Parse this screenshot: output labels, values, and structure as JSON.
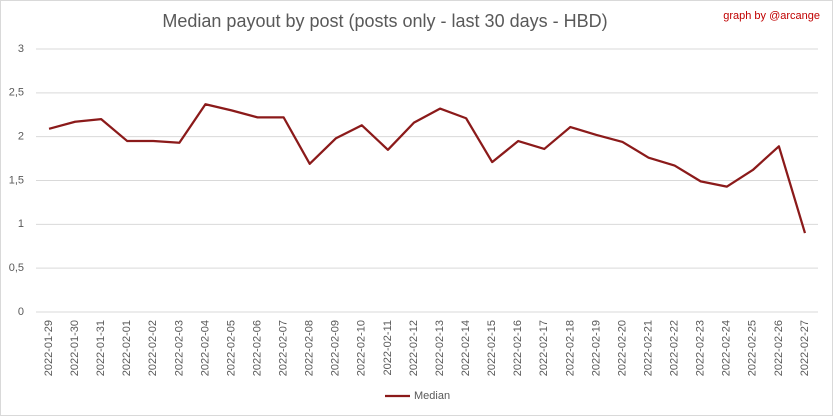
{
  "chart_data": {
    "type": "line",
    "title": "Median payout by post (posts only - last 30 days - HBD)",
    "annotation": "graph by @arcange",
    "categories": [
      "2022-01-29",
      "2022-01-30",
      "2022-01-31",
      "2022-02-01",
      "2022-02-02",
      "2022-02-03",
      "2022-02-04",
      "2022-02-05",
      "2022-02-06",
      "2022-02-07",
      "2022-02-08",
      "2022-02-09",
      "2022-02-10",
      "2022-02-11",
      "2022-02-12",
      "2022-02-13",
      "2022-02-14",
      "2022-02-15",
      "2022-02-16",
      "2022-02-17",
      "2022-02-18",
      "2022-02-19",
      "2022-02-20",
      "2022-02-21",
      "2022-02-22",
      "2022-02-23",
      "2022-02-24",
      "2022-02-25",
      "2022-02-26",
      "2022-02-27"
    ],
    "series": [
      {
        "name": "Median",
        "color": "#8b1a1a",
        "values": [
          2.09,
          2.17,
          2.2,
          1.95,
          1.95,
          1.93,
          2.37,
          2.3,
          2.22,
          2.22,
          1.69,
          1.98,
          2.13,
          1.85,
          2.16,
          2.32,
          2.21,
          1.71,
          1.95,
          1.86,
          2.11,
          2.02,
          1.94,
          1.76,
          1.67,
          1.49,
          1.43,
          1.62,
          1.89,
          0.9
        ]
      }
    ],
    "ylim": [
      0,
      3
    ],
    "yticks": [
      0,
      {
        "value": 0.5,
        "label": "0,5"
      },
      1,
      {
        "value": 1.5,
        "label": "1,5"
      },
      2,
      {
        "value": 2.5,
        "label": "2,5"
      },
      3
    ],
    "grid": true,
    "legend": "bottom"
  }
}
